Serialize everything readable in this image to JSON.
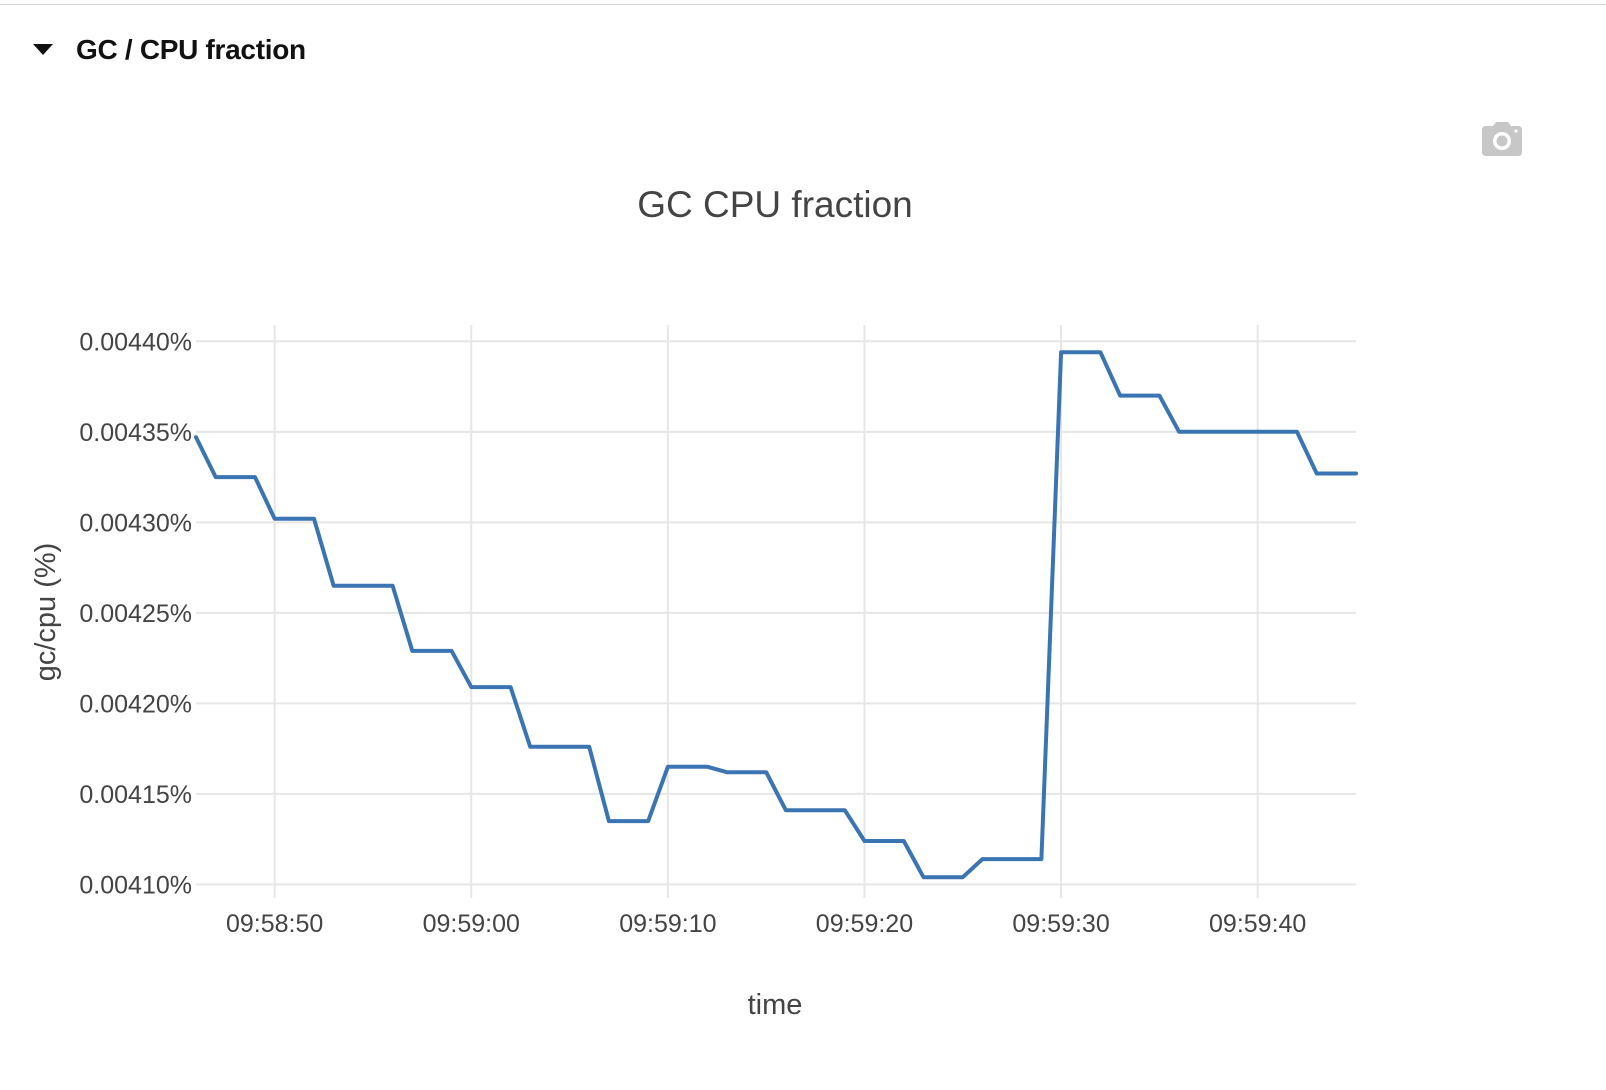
{
  "section": {
    "title": "GC / CPU fraction",
    "toggle_icon": "caret-down-icon",
    "toggle_state": "expanded"
  },
  "toolbar": {
    "camera_icon": "camera-icon"
  },
  "chart_data": {
    "type": "line",
    "title": "GC CPU fraction",
    "xlabel": "time",
    "ylabel": "gc/cpu (%)",
    "y_tick_labels": [
      "0.00410%",
      "0.00415%",
      "0.00420%",
      "0.00425%",
      "0.00430%",
      "0.00435%",
      "0.00440%"
    ],
    "y_ticks": [
      0.0041,
      0.00415,
      0.0042,
      0.00425,
      0.0043,
      0.00435,
      0.0044
    ],
    "x_tick_labels": [
      "09:58:50",
      "09:59:00",
      "09:59:10",
      "09:59:20",
      "09:59:30",
      "09:59:40"
    ],
    "x_ticks": [
      "09:58:50",
      "09:59:00",
      "09:59:10",
      "09:59:20",
      "09:59:30",
      "09:59:40"
    ],
    "xlim": [
      "09:58:46",
      "09:59:45"
    ],
    "ylim": [
      0.0040925,
      0.004409
    ],
    "grid": true,
    "line_color": "#3a74b2",
    "series": [
      {
        "x": [
          "09:58:46",
          "09:58:47",
          "09:58:48",
          "09:58:49",
          "09:58:50",
          "09:58:51",
          "09:58:52",
          "09:58:53",
          "09:58:54",
          "09:58:55",
          "09:58:56",
          "09:58:57",
          "09:58:58",
          "09:58:59",
          "09:59:00",
          "09:59:01",
          "09:59:02",
          "09:59:03",
          "09:59:04",
          "09:59:05",
          "09:59:06",
          "09:59:07",
          "09:59:08",
          "09:59:09",
          "09:59:10",
          "09:59:11",
          "09:59:12",
          "09:59:13",
          "09:59:14",
          "09:59:15",
          "09:59:16",
          "09:59:17",
          "09:59:18",
          "09:59:19",
          "09:59:20",
          "09:59:21",
          "09:59:22",
          "09:59:23",
          "09:59:24",
          "09:59:25",
          "09:59:26",
          "09:59:27",
          "09:59:28",
          "09:59:29",
          "09:59:30",
          "09:59:31",
          "09:59:32",
          "09:59:33",
          "09:59:34",
          "09:59:35",
          "09:59:36",
          "09:59:37",
          "09:59:38",
          "09:59:39",
          "09:59:40",
          "09:59:41",
          "09:59:42",
          "09:59:43",
          "09:59:44",
          "09:59:45"
        ],
        "values": [
          0.004347,
          0.004325,
          0.004325,
          0.004325,
          0.004302,
          0.004302,
          0.004302,
          0.004265,
          0.004265,
          0.004265,
          0.004265,
          0.004229,
          0.004229,
          0.004229,
          0.004209,
          0.004209,
          0.004209,
          0.004176,
          0.004176,
          0.004176,
          0.004176,
          0.004135,
          0.004135,
          0.004135,
          0.004165,
          0.004165,
          0.004165,
          0.004162,
          0.004162,
          0.004162,
          0.004141,
          0.004141,
          0.004141,
          0.004141,
          0.004124,
          0.004124,
          0.004124,
          0.004104,
          0.004104,
          0.004104,
          0.004114,
          0.004114,
          0.004114,
          0.004114,
          0.004394,
          0.004394,
          0.004394,
          0.00437,
          0.00437,
          0.00437,
          0.00435,
          0.00435,
          0.00435,
          0.00435,
          0.00435,
          0.00435,
          0.00435,
          0.004327,
          0.004327,
          0.004327
        ]
      }
    ]
  }
}
